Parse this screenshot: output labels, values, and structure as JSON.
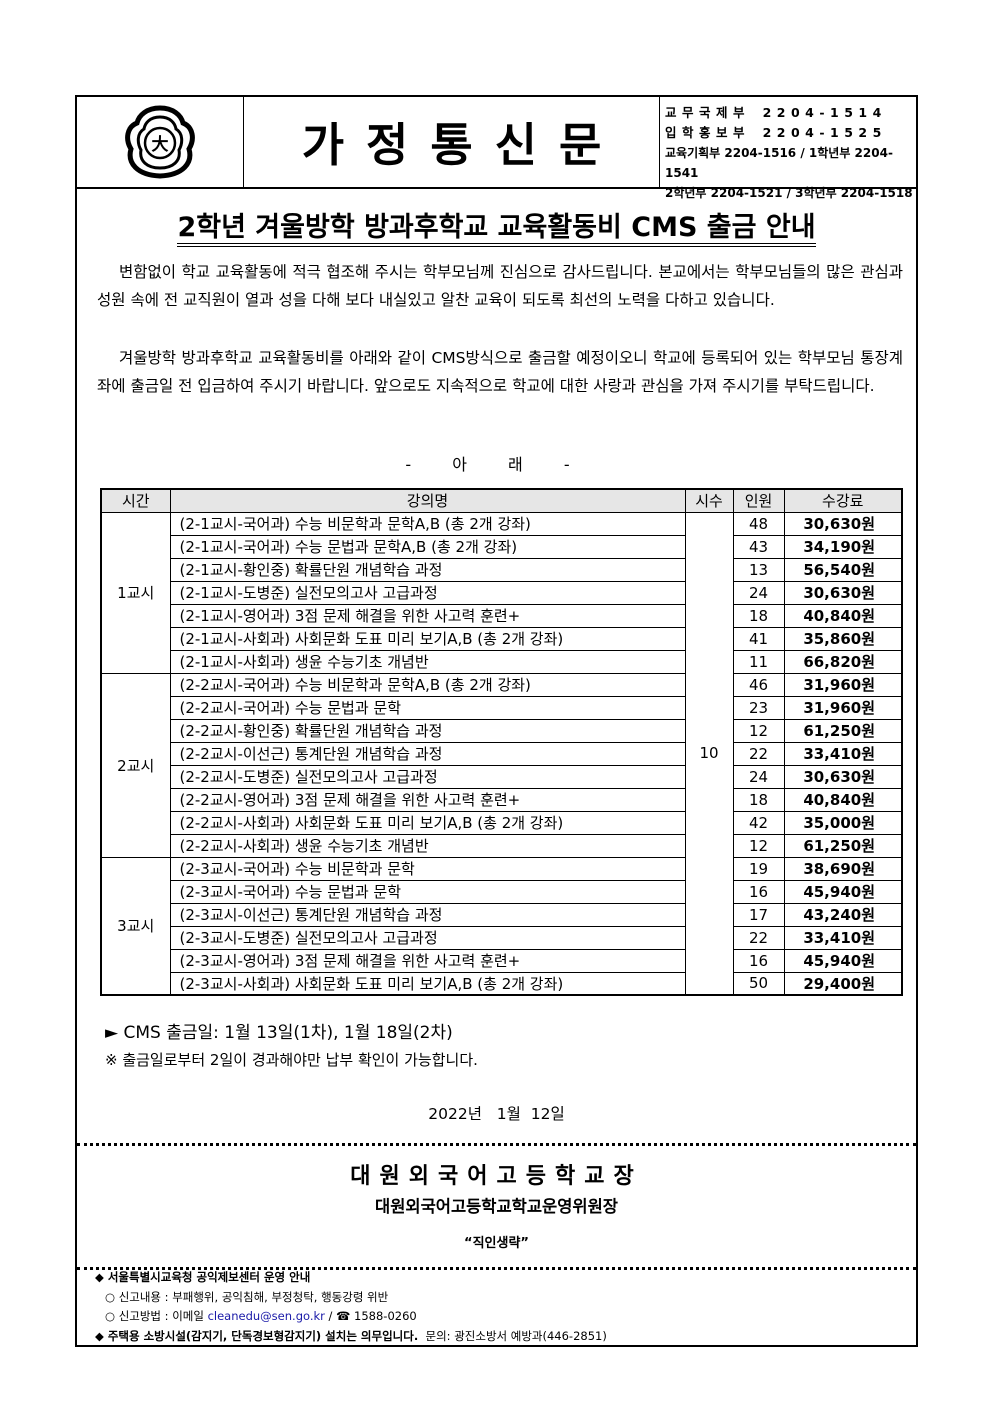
{
  "header": {
    "title": "가정통신문",
    "contacts": [
      {
        "dept": "교무국제부",
        "phone": "2204-1514"
      },
      {
        "dept": "입학홍보부",
        "phone": "2204-1525"
      }
    ],
    "contacts_line3": "교육기획부 2204-1516 / 1학년부 2204-1541",
    "contacts_line4": "2학년부 2204-1521 / 3학년부 2204-1518"
  },
  "doc_title": "2학년 겨울방학 방과후학교 교육활동비 CMS 출금 안내",
  "paragraphs": [
    "변함없이 학교 교육활동에 적극 협조해 주시는 학부모님께 진심으로 감사드립니다. 본교에서는 학부모님들의 많은 관심과 성원 속에 전 교직원이 열과 성을 다해 보다 내실있고 알찬 교육이 되도록 최선의 노력을 다하고 있습니다.",
    "겨울방학 방과후학교 교육활동비를 아래와 같이 CMS방식으로 출금할 예정이오니 학교에 등록되어 있는 학부모님 통장계좌에 출금일 전 입금하여 주시기 바랍니다. 앞으로도 지속적으로 학교에 대한 사랑과 관심을 가져 주시기를 부탁드립니다."
  ],
  "below_label": "- 아 래 -",
  "table": {
    "headers": [
      "시간",
      "강의명",
      "시수",
      "인원",
      "수강료"
    ],
    "hours": "10",
    "groups": [
      {
        "period": "1교시",
        "rows": [
          [
            "(2-1교시-국어과) 수능 비문학과 문학A,B (총 2개 강좌)",
            "48",
            "30,630원"
          ],
          [
            "(2-1교시-국어과) 수능 문법과 문학A,B (총 2개 강좌)",
            "43",
            "34,190원"
          ],
          [
            "(2-1교시-황인중) 확률단원 개념학습 과정",
            "13",
            "56,540원"
          ],
          [
            "(2-1교시-도병준) 실전모의고사 고급과정",
            "24",
            "30,630원"
          ],
          [
            "(2-1교시-영어과) 3점 문제 해결을 위한 사고력 훈련+",
            "18",
            "40,840원"
          ],
          [
            "(2-1교시-사회과) 사회문화 도표 미리 보기A,B (총 2개 강좌)",
            "41",
            "35,860원"
          ],
          [
            "(2-1교시-사회과) 생윤 수능기초 개념반",
            "11",
            "66,820원"
          ]
        ]
      },
      {
        "period": "2교시",
        "rows": [
          [
            "(2-2교시-국어과) 수능 비문학과 문학A,B (총 2개 강좌)",
            "46",
            "31,960원"
          ],
          [
            "(2-2교시-국어과) 수능 문법과 문학",
            "23",
            "31,960원"
          ],
          [
            "(2-2교시-황인중) 확률단원 개념학습 과정",
            "12",
            "61,250원"
          ],
          [
            "(2-2교시-이선근) 통계단원 개념학습 과정",
            "22",
            "33,410원"
          ],
          [
            "(2-2교시-도병준) 실전모의고사 고급과정",
            "24",
            "30,630원"
          ],
          [
            "(2-2교시-영어과) 3점 문제 해결을 위한 사고력 훈련+",
            "18",
            "40,840원"
          ],
          [
            "(2-2교시-사회과) 사회문화 도표 미리 보기A,B (총 2개 강좌)",
            "42",
            "35,000원"
          ],
          [
            "(2-2교시-사회과) 생윤 수능기초 개념반",
            "12",
            "61,250원"
          ]
        ]
      },
      {
        "period": "3교시",
        "rows": [
          [
            "(2-3교시-국어과) 수능 비문학과 문학",
            "19",
            "38,690원"
          ],
          [
            "(2-3교시-국어과) 수능 문법과 문학",
            "16",
            "45,940원"
          ],
          [
            "(2-3교시-이선근) 통계단원 개념학습 과정",
            "17",
            "43,240원"
          ],
          [
            "(2-3교시-도병준) 실전모의고사 고급과정",
            "22",
            "33,410원"
          ],
          [
            "(2-3교시-영어과) 3점 문제 해결을 위한 사고력 훈련+",
            "16",
            "45,940원"
          ],
          [
            "(2-3교시-사회과) 사회문화 도표 미리 보기A,B (총 2개 강좌)",
            "50",
            "29,400원"
          ]
        ]
      }
    ]
  },
  "cms_line": "► CMS 출금일: 1월 13일(1차), 1월 18일(2차)",
  "note": "※ 출금일로부터 2일이 경과해야만 납부 확인이 가능합니다.",
  "date": "2022년   1월  12일",
  "school": "대원외국어고등학교장",
  "committee": "대원외국어고등학교학교운영위원장",
  "seal_note": "“직인생략”",
  "footer": {
    "heading": "◆ 서울특별시교육청 공익제보센터 운영 안내",
    "report_content": "○ 신고내용 : 부패행위, 공익침해, 부정청탁, 행동강령 위반",
    "report_method_prefix": "○ 신고방법 : 이메일 ",
    "email": "cleanedu@sen.go.kr",
    "phone": " / ☎ 1588-0260",
    "fire_notice": "◆ 주택용 소방시설(감지기, 단독경보형감지기) 설치는 의무입니다.",
    "fire_contact": "문의: 광진소방서 예방과(446-2851)"
  }
}
